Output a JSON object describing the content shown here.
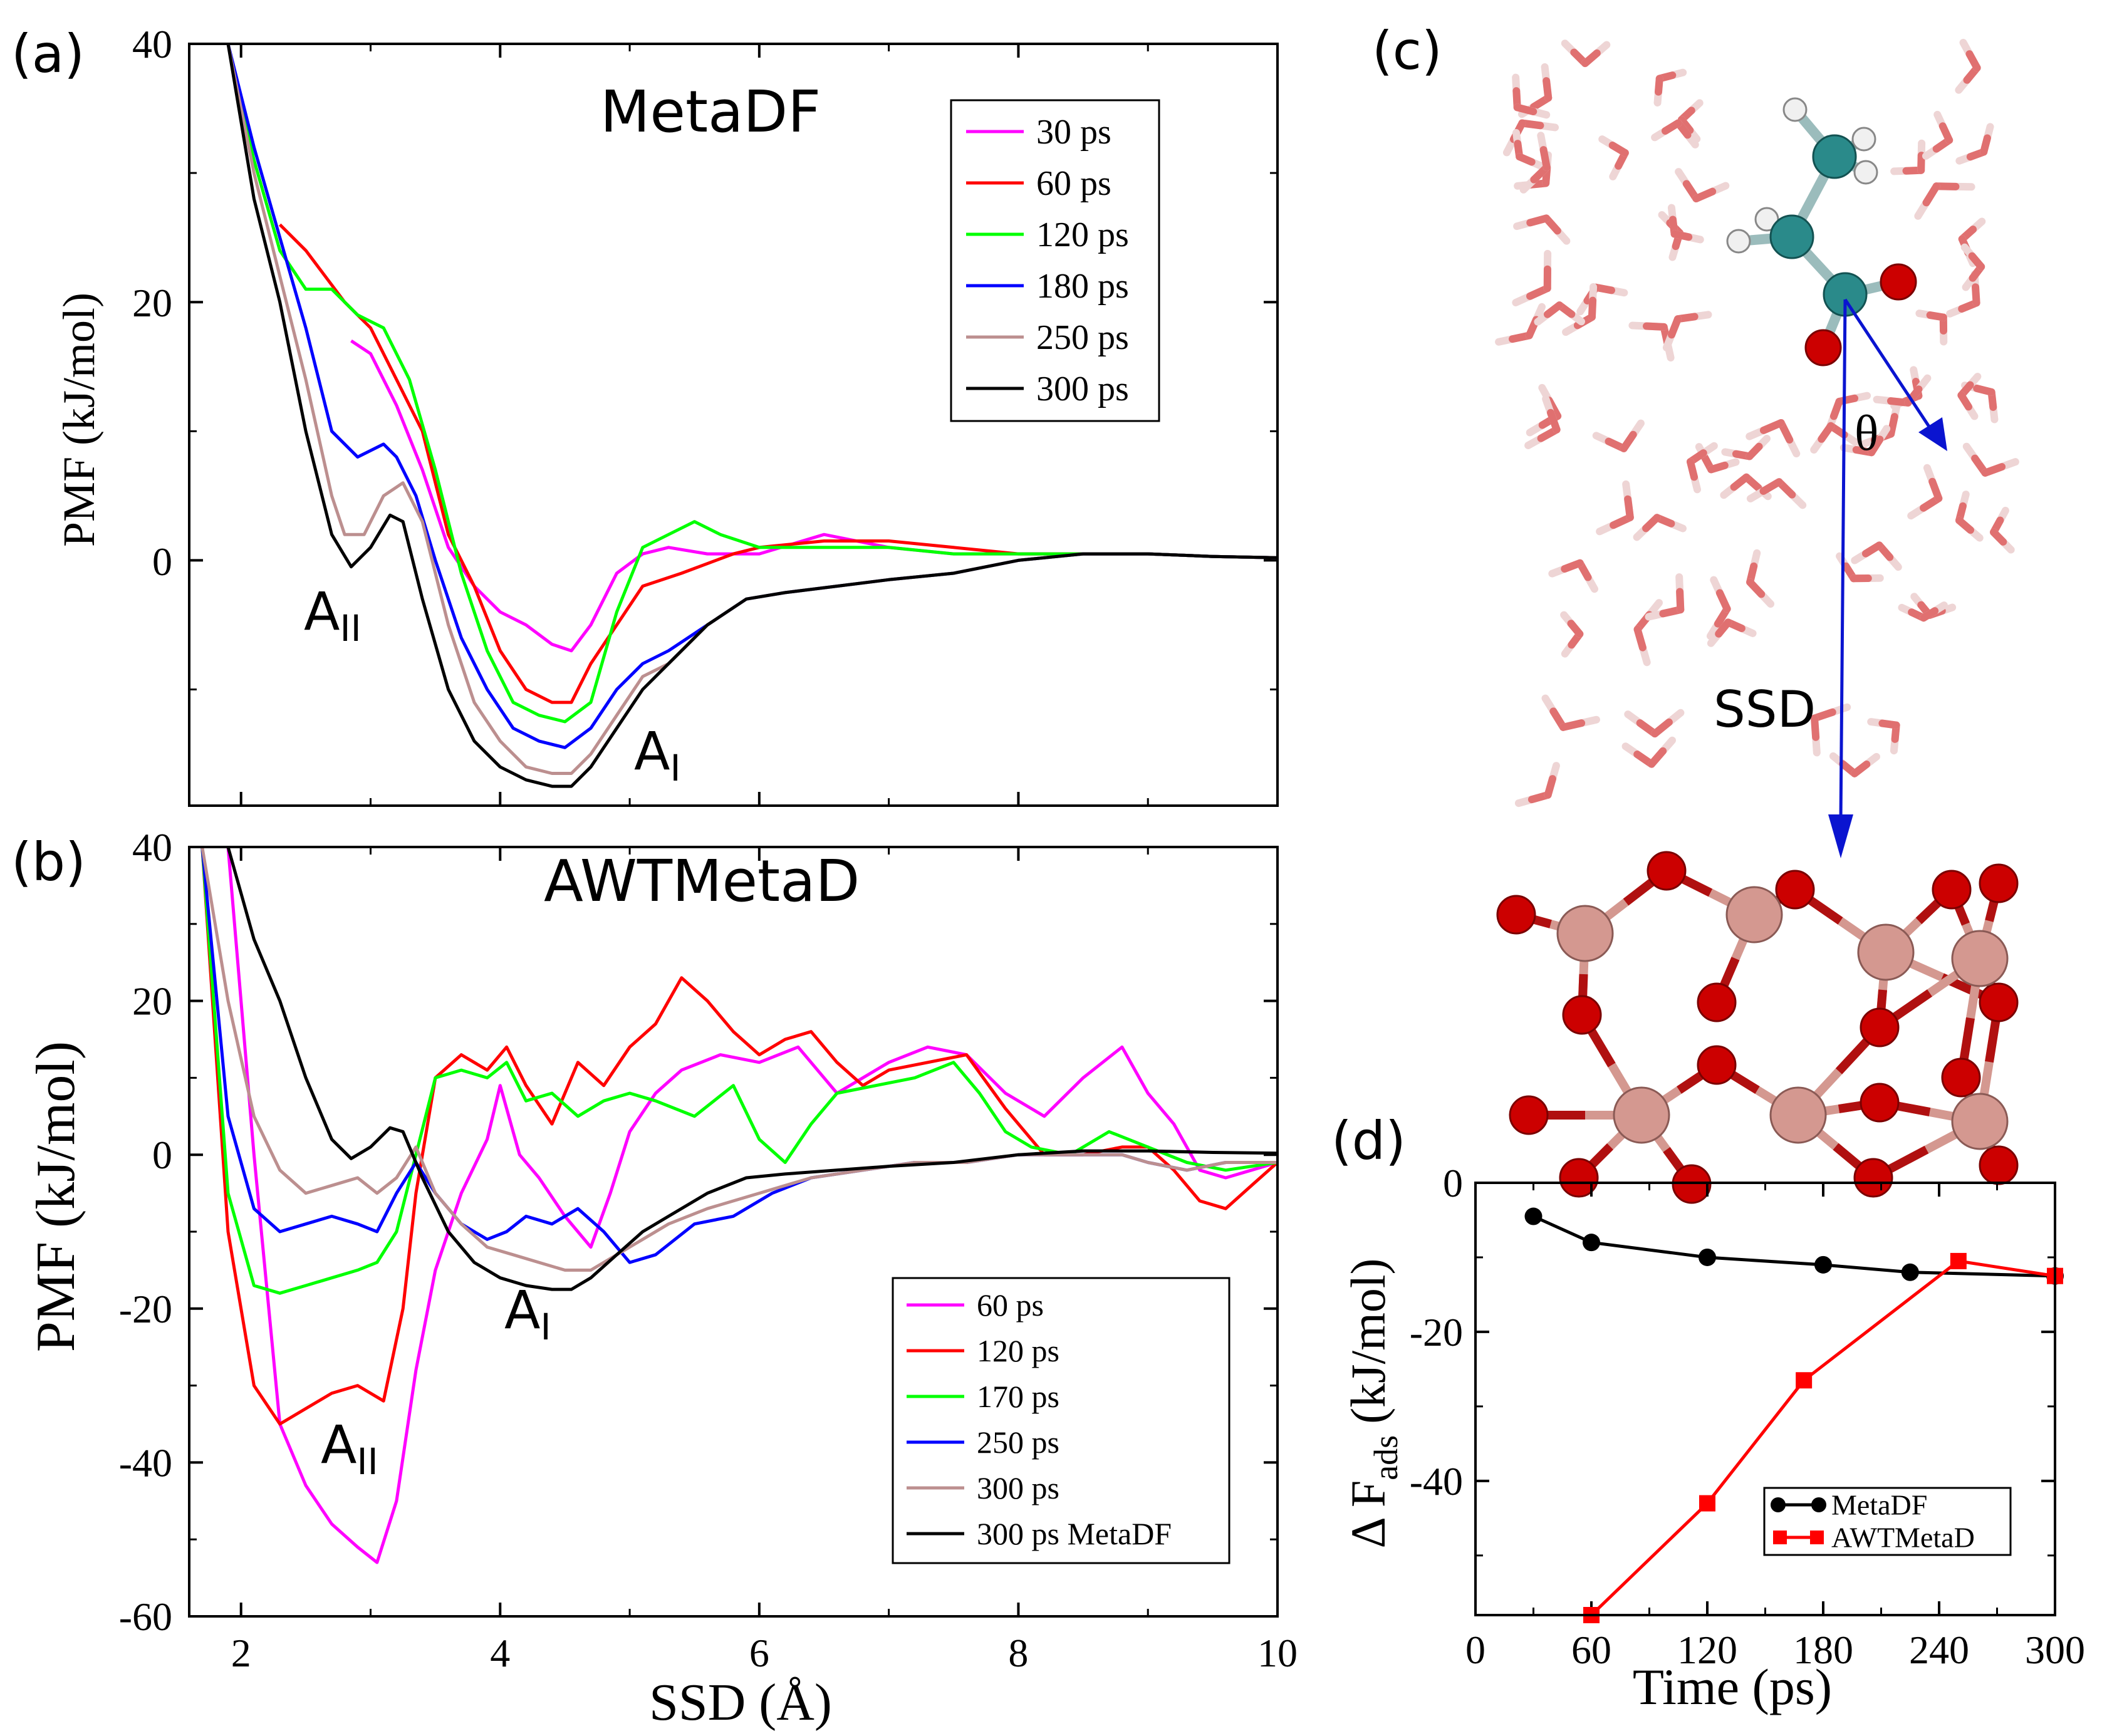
{
  "panels": {
    "a": {
      "letter": "(a)",
      "title": "MetaDF",
      "ylabel": "PMF (kJ/mol)",
      "y_ticks": [
        "0",
        "20",
        "40"
      ],
      "annotations": [
        {
          "main": "A",
          "sub": "II"
        },
        {
          "main": "A",
          "sub": "I"
        }
      ]
    },
    "b": {
      "letter": "(b)",
      "title": "AWTMetaD",
      "ylabel": "PMF (kJ/mol)",
      "xlabel": "SSD (Å)",
      "x_ticks": [
        "2",
        "4",
        "6",
        "8",
        "10"
      ],
      "y_ticks": [
        "-60",
        "-40",
        "-20",
        "0",
        "20",
        "40"
      ],
      "annotations": [
        {
          "main": "A",
          "sub": "II"
        },
        {
          "main": "A",
          "sub": "I"
        }
      ]
    },
    "c": {
      "letter": "(c)",
      "angle_label": "θ",
      "distance_label": "SSD"
    },
    "d": {
      "letter": "(d)",
      "ylabel_main": "Δ F",
      "ylabel_sub": "ads",
      "ylabel_units": "(kJ/mol)",
      "xlabel": "Time (ps)",
      "x_ticks": [
        "0",
        "60",
        "120",
        "180",
        "240",
        "300"
      ],
      "y_ticks": [
        "0",
        "-20",
        "-40"
      ]
    }
  },
  "colors": {
    "magenta": "#ff00ff",
    "red": "#ff0000",
    "green": "#00ff00",
    "blue": "#0000ff",
    "tan": "#bc8f8f",
    "black": "#000000",
    "ssd_arrow": "#0a14d0",
    "carbon": "#2a8a8a",
    "oxygen": "#cc0000",
    "titanium": "#d49890"
  },
  "chart_data": [
    {
      "panel": "a",
      "type": "line",
      "title": "MetaDF",
      "xlabel": "",
      "ylabel": "PMF (kJ/mol)",
      "xlim": [
        1.6,
        10
      ],
      "ylim": [
        -19,
        40
      ],
      "grid": false,
      "legend_position": "top-right",
      "series": [
        {
          "name": "30 ps",
          "color": "#ff00ff",
          "x": [
            2.85,
            3.0,
            3.2,
            3.4,
            3.6,
            3.8,
            4.0,
            4.2,
            4.4,
            4.55,
            4.7,
            4.9,
            5.1,
            5.3,
            5.6,
            6.0,
            6.5,
            7.0,
            7.5,
            8.0,
            8.5,
            9.0,
            9.5,
            10.0
          ],
          "y": [
            17,
            16,
            12,
            7,
            1,
            -2,
            -4,
            -5,
            -6.5,
            -7,
            -5,
            -1,
            0.5,
            1,
            0.5,
            0.5,
            2,
            1,
            0.5,
            0.5,
            0.5,
            0.5,
            0.3,
            0.2
          ]
        },
        {
          "name": "60 ps",
          "color": "#ff0000",
          "x": [
            2.3,
            2.5,
            2.8,
            3.0,
            3.2,
            3.4,
            3.6,
            3.8,
            4.0,
            4.2,
            4.4,
            4.55,
            4.7,
            4.9,
            5.1,
            5.4,
            5.8,
            6.0,
            6.5,
            7.0,
            7.5,
            8.0,
            8.5,
            9.0,
            9.5,
            10.0
          ],
          "y": [
            26,
            24,
            20,
            18,
            14,
            10,
            2,
            -2,
            -7,
            -10,
            -11,
            -11,
            -8,
            -5,
            -2,
            -1,
            0.5,
            1,
            1.5,
            1.5,
            1,
            0.5,
            0.5,
            0.5,
            0.3,
            0.2
          ]
        },
        {
          "name": "120 ps",
          "color": "#00ff00",
          "x": [
            1.9,
            2.1,
            2.3,
            2.5,
            2.7,
            2.9,
            3.1,
            3.3,
            3.5,
            3.7,
            3.9,
            4.1,
            4.3,
            4.5,
            4.7,
            4.9,
            5.1,
            5.3,
            5.5,
            5.7,
            6.0,
            6.5,
            7.0,
            7.5,
            8.0,
            8.5,
            9.0,
            9.5,
            10.0
          ],
          "y": [
            40,
            31,
            24,
            21,
            21,
            19,
            18,
            14,
            7,
            -1,
            -7,
            -11,
            -12,
            -12.5,
            -11,
            -4,
            1,
            2,
            3,
            2,
            1,
            1,
            1,
            0.5,
            0.5,
            0.5,
            0.5,
            0.3,
            0.2
          ]
        },
        {
          "name": "180 ps",
          "color": "#0000ff",
          "x": [
            1.9,
            2.1,
            2.3,
            2.5,
            2.7,
            2.9,
            3.1,
            3.2,
            3.35,
            3.5,
            3.7,
            3.9,
            4.1,
            4.3,
            4.5,
            4.7,
            4.9,
            5.1,
            5.3,
            5.6,
            5.9,
            6.2,
            6.6,
            7.0,
            7.5,
            8.0,
            8.5,
            9.0,
            9.5,
            10.0
          ],
          "y": [
            40,
            32,
            25,
            18,
            10,
            8,
            9,
            8,
            5,
            0,
            -6,
            -10,
            -13,
            -14,
            -14.5,
            -13,
            -10,
            -8,
            -7,
            -5,
            -3,
            -2.5,
            -2,
            -1.5,
            -1,
            0,
            0.5,
            0.5,
            0.3,
            0.2
          ]
        },
        {
          "name": "250 ps",
          "color": "#bc8f8f",
          "x": [
            1.9,
            2.1,
            2.3,
            2.5,
            2.7,
            2.8,
            2.95,
            3.1,
            3.25,
            3.4,
            3.6,
            3.8,
            4.0,
            4.2,
            4.4,
            4.55,
            4.7,
            4.9,
            5.1,
            5.3,
            5.6,
            5.9,
            6.2,
            6.6,
            7.0,
            7.5,
            8.0,
            8.5,
            9.0,
            9.5,
            10.0
          ],
          "y": [
            40,
            30,
            22,
            14,
            5,
            2,
            2,
            5,
            6,
            3,
            -5,
            -11,
            -14,
            -16,
            -16.5,
            -16.5,
            -15,
            -12,
            -9,
            -8,
            -5,
            -3,
            -2.5,
            -2,
            -1.5,
            -1,
            0,
            0.5,
            0.5,
            0.3,
            0.2
          ]
        },
        {
          "name": "300 ps",
          "color": "#000000",
          "x": [
            1.9,
            2.1,
            2.3,
            2.5,
            2.7,
            2.85,
            3.0,
            3.15,
            3.25,
            3.4,
            3.6,
            3.8,
            4.0,
            4.2,
            4.4,
            4.55,
            4.7,
            4.9,
            5.1,
            5.3,
            5.6,
            5.9,
            6.2,
            6.6,
            7.0,
            7.5,
            8.0,
            8.5,
            9.0,
            9.5,
            10.0
          ],
          "y": [
            40,
            28,
            20,
            10,
            2,
            -0.5,
            1,
            3.5,
            3,
            -3,
            -10,
            -14,
            -16,
            -17,
            -17.5,
            -17.5,
            -16,
            -13,
            -10,
            -8,
            -5,
            -3,
            -2.5,
            -2,
            -1.5,
            -1,
            0,
            0.5,
            0.5,
            0.3,
            0.2
          ]
        }
      ]
    },
    {
      "panel": "b",
      "type": "line",
      "title": "AWTMetaD",
      "xlabel": "SSD (Å)",
      "ylabel": "PMF (kJ/mol)",
      "xlim": [
        1.6,
        10
      ],
      "ylim": [
        -60,
        40
      ],
      "grid": false,
      "legend_position": "bottom-right",
      "series": [
        {
          "name": "60 ps",
          "color": "#ff00ff",
          "x": [
            1.9,
            2.1,
            2.3,
            2.5,
            2.7,
            2.9,
            3.05,
            3.2,
            3.35,
            3.5,
            3.7,
            3.9,
            4.0,
            4.15,
            4.3,
            4.5,
            4.7,
            4.85,
            5.0,
            5.2,
            5.4,
            5.7,
            6.0,
            6.3,
            6.6,
            7.0,
            7.3,
            7.6,
            7.9,
            8.2,
            8.5,
            8.8,
            9.0,
            9.2,
            9.4,
            9.6,
            9.8,
            10.0
          ],
          "y": [
            40,
            0,
            -35,
            -43,
            -48,
            -51,
            -53,
            -45,
            -28,
            -15,
            -5,
            2,
            9,
            0,
            -3,
            -8,
            -12,
            -5,
            3,
            8,
            11,
            13,
            12,
            14,
            8,
            12,
            14,
            13,
            8,
            5,
            10,
            14,
            8,
            4,
            -2,
            -3,
            -2,
            -1
          ]
        },
        {
          "name": "120 ps",
          "color": "#ff0000",
          "x": [
            1.7,
            1.9,
            2.1,
            2.3,
            2.5,
            2.7,
            2.9,
            3.1,
            3.25,
            3.35,
            3.5,
            3.7,
            3.9,
            4.05,
            4.2,
            4.4,
            4.6,
            4.8,
            5.0,
            5.2,
            5.4,
            5.6,
            5.8,
            6.0,
            6.2,
            6.4,
            6.6,
            6.8,
            7.0,
            7.3,
            7.6,
            7.9,
            8.2,
            8.5,
            8.8,
            9.0,
            9.2,
            9.4,
            9.6,
            9.8,
            10.0
          ],
          "y": [
            40,
            -10,
            -30,
            -35,
            -33,
            -31,
            -30,
            -32,
            -20,
            -5,
            10,
            13,
            11,
            14,
            9,
            4,
            12,
            9,
            14,
            17,
            23,
            20,
            16,
            13,
            15,
            16,
            12,
            9,
            11,
            12,
            13,
            6,
            0,
            0,
            1,
            1,
            -2,
            -6,
            -7,
            -4,
            -1
          ]
        },
        {
          "name": "170 ps",
          "color": "#00ff00",
          "x": [
            1.7,
            1.9,
            2.1,
            2.3,
            2.5,
            2.7,
            2.9,
            3.05,
            3.2,
            3.35,
            3.5,
            3.7,
            3.9,
            4.05,
            4.2,
            4.4,
            4.6,
            4.8,
            5.0,
            5.2,
            5.5,
            5.8,
            6.0,
            6.2,
            6.4,
            6.6,
            6.9,
            7.2,
            7.5,
            7.7,
            7.9,
            8.1,
            8.4,
            8.7,
            9.0,
            9.3,
            9.6,
            10.0
          ],
          "y": [
            40,
            -5,
            -17,
            -18,
            -17,
            -16,
            -15,
            -14,
            -10,
            0,
            10,
            11,
            10,
            12,
            7,
            8,
            5,
            7,
            8,
            7,
            5,
            9,
            2,
            -1,
            4,
            8,
            9,
            10,
            12,
            8,
            3,
            1,
            0,
            3,
            1,
            -1,
            -2,
            -1
          ]
        },
        {
          "name": "250 ps",
          "color": "#0000ff",
          "x": [
            1.7,
            1.9,
            2.1,
            2.3,
            2.5,
            2.7,
            2.9,
            3.05,
            3.2,
            3.35,
            3.5,
            3.7,
            3.9,
            4.05,
            4.2,
            4.4,
            4.6,
            4.8,
            5.0,
            5.2,
            5.5,
            5.8,
            6.1,
            6.4,
            6.8,
            7.2,
            7.6,
            8.0,
            8.4,
            8.8,
            9.0,
            9.3,
            9.6,
            10.0
          ],
          "y": [
            40,
            5,
            -7,
            -10,
            -9,
            -8,
            -9,
            -10,
            -5,
            -1,
            -5,
            -9,
            -11,
            -10,
            -8,
            -9,
            -7,
            -10,
            -14,
            -13,
            -9,
            -8,
            -5,
            -3,
            -2,
            -1,
            -1,
            0,
            0,
            0,
            -1,
            -2,
            -1,
            -1
          ]
        },
        {
          "name": "300 ps",
          "color": "#bc8f8f",
          "x": [
            1.7,
            1.9,
            2.1,
            2.3,
            2.5,
            2.7,
            2.9,
            3.05,
            3.2,
            3.35,
            3.5,
            3.7,
            3.9,
            4.1,
            4.3,
            4.5,
            4.7,
            4.9,
            5.1,
            5.3,
            5.6,
            6.0,
            6.4,
            6.8,
            7.2,
            7.6,
            8.0,
            8.4,
            8.8,
            9.0,
            9.3,
            9.6,
            10.0
          ],
          "y": [
            40,
            20,
            5,
            -2,
            -5,
            -4,
            -3,
            -5,
            -3,
            1,
            -5,
            -9,
            -12,
            -13,
            -14,
            -15,
            -15,
            -13,
            -11,
            -9,
            -7,
            -5,
            -3,
            -2,
            -1,
            -1,
            0,
            0,
            0,
            -1,
            -2,
            -1,
            -1
          ]
        },
        {
          "name": "300 ps MetaDF",
          "color": "#000000",
          "x": [
            1.9,
            2.1,
            2.3,
            2.5,
            2.7,
            2.85,
            3.0,
            3.15,
            3.25,
            3.4,
            3.6,
            3.8,
            4.0,
            4.2,
            4.4,
            4.55,
            4.7,
            4.9,
            5.1,
            5.3,
            5.6,
            5.9,
            6.2,
            6.6,
            7.0,
            7.5,
            8.0,
            8.5,
            9.0,
            9.5,
            10.0
          ],
          "y": [
            40,
            28,
            20,
            10,
            2,
            -0.5,
            1,
            3.5,
            3,
            -3,
            -10,
            -14,
            -16,
            -17,
            -17.5,
            -17.5,
            -16,
            -13,
            -10,
            -8,
            -5,
            -3,
            -2.5,
            -2,
            -1.5,
            -1,
            0,
            0.5,
            0.5,
            0.3,
            0.2
          ]
        }
      ]
    },
    {
      "panel": "d",
      "type": "line",
      "title": "",
      "xlabel": "Time (ps)",
      "ylabel": "Δ F ads (kJ/mol)",
      "xlim": [
        0,
        300
      ],
      "ylim": [
        -58,
        0
      ],
      "grid": false,
      "legend_position": "bottom-right",
      "series": [
        {
          "name": "MetaDF",
          "color": "#000000",
          "marker": "circle",
          "x": [
            30,
            60,
            120,
            180,
            225,
            300
          ],
          "y": [
            -4.5,
            -8,
            -10,
            -11,
            -12,
            -12.5
          ]
        },
        {
          "name": "AWTMetaD",
          "color": "#ff0000",
          "marker": "square",
          "x": [
            60,
            120,
            170,
            250,
            300
          ],
          "y": [
            -58,
            -43,
            -26.5,
            -10.5,
            -12.5
          ]
        }
      ]
    }
  ]
}
